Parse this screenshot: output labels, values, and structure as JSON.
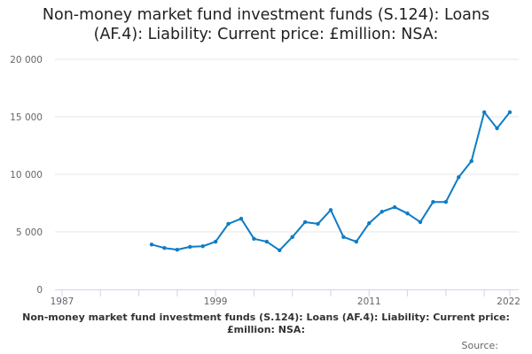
{
  "chart_data": {
    "type": "line",
    "title": "Non-money market fund investment funds (S.124): Loans (AF.4): Liability: Current price: £million: NSA:",
    "xlabel": "",
    "ylabel": "",
    "xlim": [
      1987,
      2022
    ],
    "ylim": [
      0,
      20000
    ],
    "x_tick_labels": [
      "1987",
      "1999",
      "2011",
      "2022"
    ],
    "y_tick_values": [
      0,
      5000,
      10000,
      15000,
      20000
    ],
    "y_tick_labels": [
      "0",
      "5 000",
      "10 000",
      "15 000",
      "20 000"
    ],
    "grid": "horizontal",
    "series": [
      {
        "name": "Non-money market fund investment funds (S.124): Loans (AF.4): Liability: Current price: £million: NSA:",
        "color": "#0f7cc5",
        "x": [
          1994,
          1995,
          1996,
          1997,
          1998,
          1999,
          2000,
          2001,
          2002,
          2003,
          2004,
          2005,
          2006,
          2007,
          2008,
          2009,
          2010,
          2011,
          2012,
          2013,
          2014,
          2015,
          2016,
          2017,
          2018,
          2019,
          2020,
          2021,
          2022
        ],
        "values": [
          3900,
          3600,
          3450,
          3700,
          3750,
          4150,
          5700,
          6150,
          4400,
          4150,
          3400,
          4550,
          5850,
          5700,
          6900,
          4550,
          4150,
          5750,
          6750,
          7150,
          6600,
          5850,
          7600,
          7600,
          9750,
          11150,
          15400,
          14000,
          15400
        ]
      }
    ],
    "legend": "bottom",
    "source_label": "Source:"
  }
}
